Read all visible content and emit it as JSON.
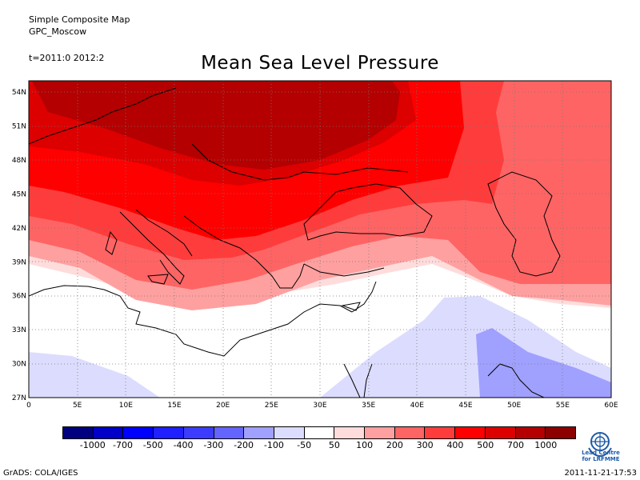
{
  "header": {
    "line1": "Simple Composite Map",
    "line2": "GPC_Moscow",
    "time": "t=2011:0 2012:2",
    "title": "Mean Sea Level Pressure"
  },
  "map": {
    "lon_range": [
      0,
      60
    ],
    "lat_range": [
      27,
      55
    ],
    "lon_ticks": [
      "0",
      "5E",
      "10E",
      "15E",
      "20E",
      "25E",
      "30E",
      "35E",
      "40E",
      "45E",
      "50E",
      "55E",
      "60E"
    ],
    "lat_ticks": [
      "27N",
      "30N",
      "33N",
      "36N",
      "39N",
      "42N",
      "45N",
      "48N",
      "51N",
      "54N"
    ],
    "grid": "dotted"
  },
  "colorbar": {
    "colors": [
      "#000080",
      "#0000c8",
      "#0000ff",
      "#1f1fff",
      "#3c3cff",
      "#6464ff",
      "#a0a0ff",
      "#dcdcff",
      "#ffffff",
      "#ffdcdc",
      "#ffa0a0",
      "#ff6464",
      "#ff3c3c",
      "#ff0000",
      "#dc0000",
      "#b40000",
      "#8c0000"
    ],
    "labels": [
      "-1000",
      "-700",
      "-500",
      "-400",
      "-300",
      "-200",
      "-100",
      "-50",
      "50",
      "100",
      "200",
      "300",
      "400",
      "500",
      "700",
      "1000"
    ]
  },
  "footer": {
    "left": "GrADS: COLA/IGES",
    "right": "2011-11-21-17:53",
    "logo_line1": "Lead Centre",
    "logo_line2": "for LRFMME"
  }
}
